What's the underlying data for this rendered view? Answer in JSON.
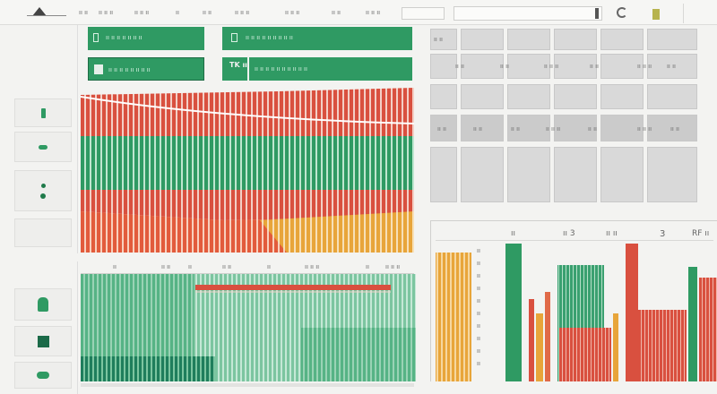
{
  "toolbar": {
    "logo_icon": "triangle-logo-icon",
    "items": [
      "ıı ıı",
      "ıı ıı ıı",
      "ıı ıı ıı",
      "ıı",
      "ıı ıı",
      "ıı ıı ıı",
      "ıı ıı ıı",
      "ıı ıı",
      "ıı ıı ıı"
    ],
    "address_value": ""
  },
  "sidebar": {
    "buttons": [
      {
        "icon": "bottle-icon"
      },
      {
        "icon": "leaf-icon"
      },
      {
        "icon": "dots-icon"
      },
      {
        "icon": "blank-icon"
      },
      {
        "icon": "bookmark-icon"
      },
      {
        "icon": "square-icon"
      },
      {
        "icon": "pill-icon"
      }
    ]
  },
  "panels": {
    "banner1": {
      "icon": "document-icon",
      "text": "ıı ıı ıı ıı ıı ıı ıı"
    },
    "banner2": {
      "icon": "document-icon",
      "text": "ıı ıı ıı ıı ıı ıı ıı ıı ıı"
    },
    "banner3": {
      "icon": "image-icon",
      "text": "ıı ıı ıı ıı ıı ıı ıı ıı"
    },
    "banner4": {
      "label": "TK ıı",
      "text": "ıı ıı ıı ıı ıı ıı ıı ıı ıı ıı"
    }
  },
  "grid": {
    "row_labels": [
      "ıı ıı",
      "ıı ıı ıı",
      "ıı ıı ıı",
      "ıı ıı ıı"
    ],
    "cells_row2": [
      "ıı ıı",
      "ıı ıı",
      "ıı ıı ıı",
      "ıı ıı",
      "ıı ıı ıı",
      "ıı ıı"
    ],
    "cells_row4": [
      "ıı ıı",
      "ıı ıı",
      "ıı ıı",
      "ıı ıı ıı",
      "ıı ıı",
      "ıı ıı ıı",
      "ıı ıı"
    ]
  },
  "chart_header": [
    "ıı",
    "ıı ıı",
    "ıı",
    "ıı ıı",
    "ıı",
    "ıı ıı ıı",
    "ıı",
    "ıı ıı ıı"
  ],
  "bar_chart": {
    "header_labels": [
      "ıı",
      "ıı 3",
      "ıı ıı",
      "3",
      "RF ıı"
    ],
    "axis_labels": [
      "ıı",
      "ıı",
      "ıı",
      "ıı",
      "ıı",
      "ıı",
      "ıı",
      "ıı",
      "ıı",
      "ıı"
    ]
  },
  "colors": {
    "green": "#2f9a63",
    "red": "#d9503f",
    "orange": "#e8a53a",
    "teal": "#3aa783"
  }
}
